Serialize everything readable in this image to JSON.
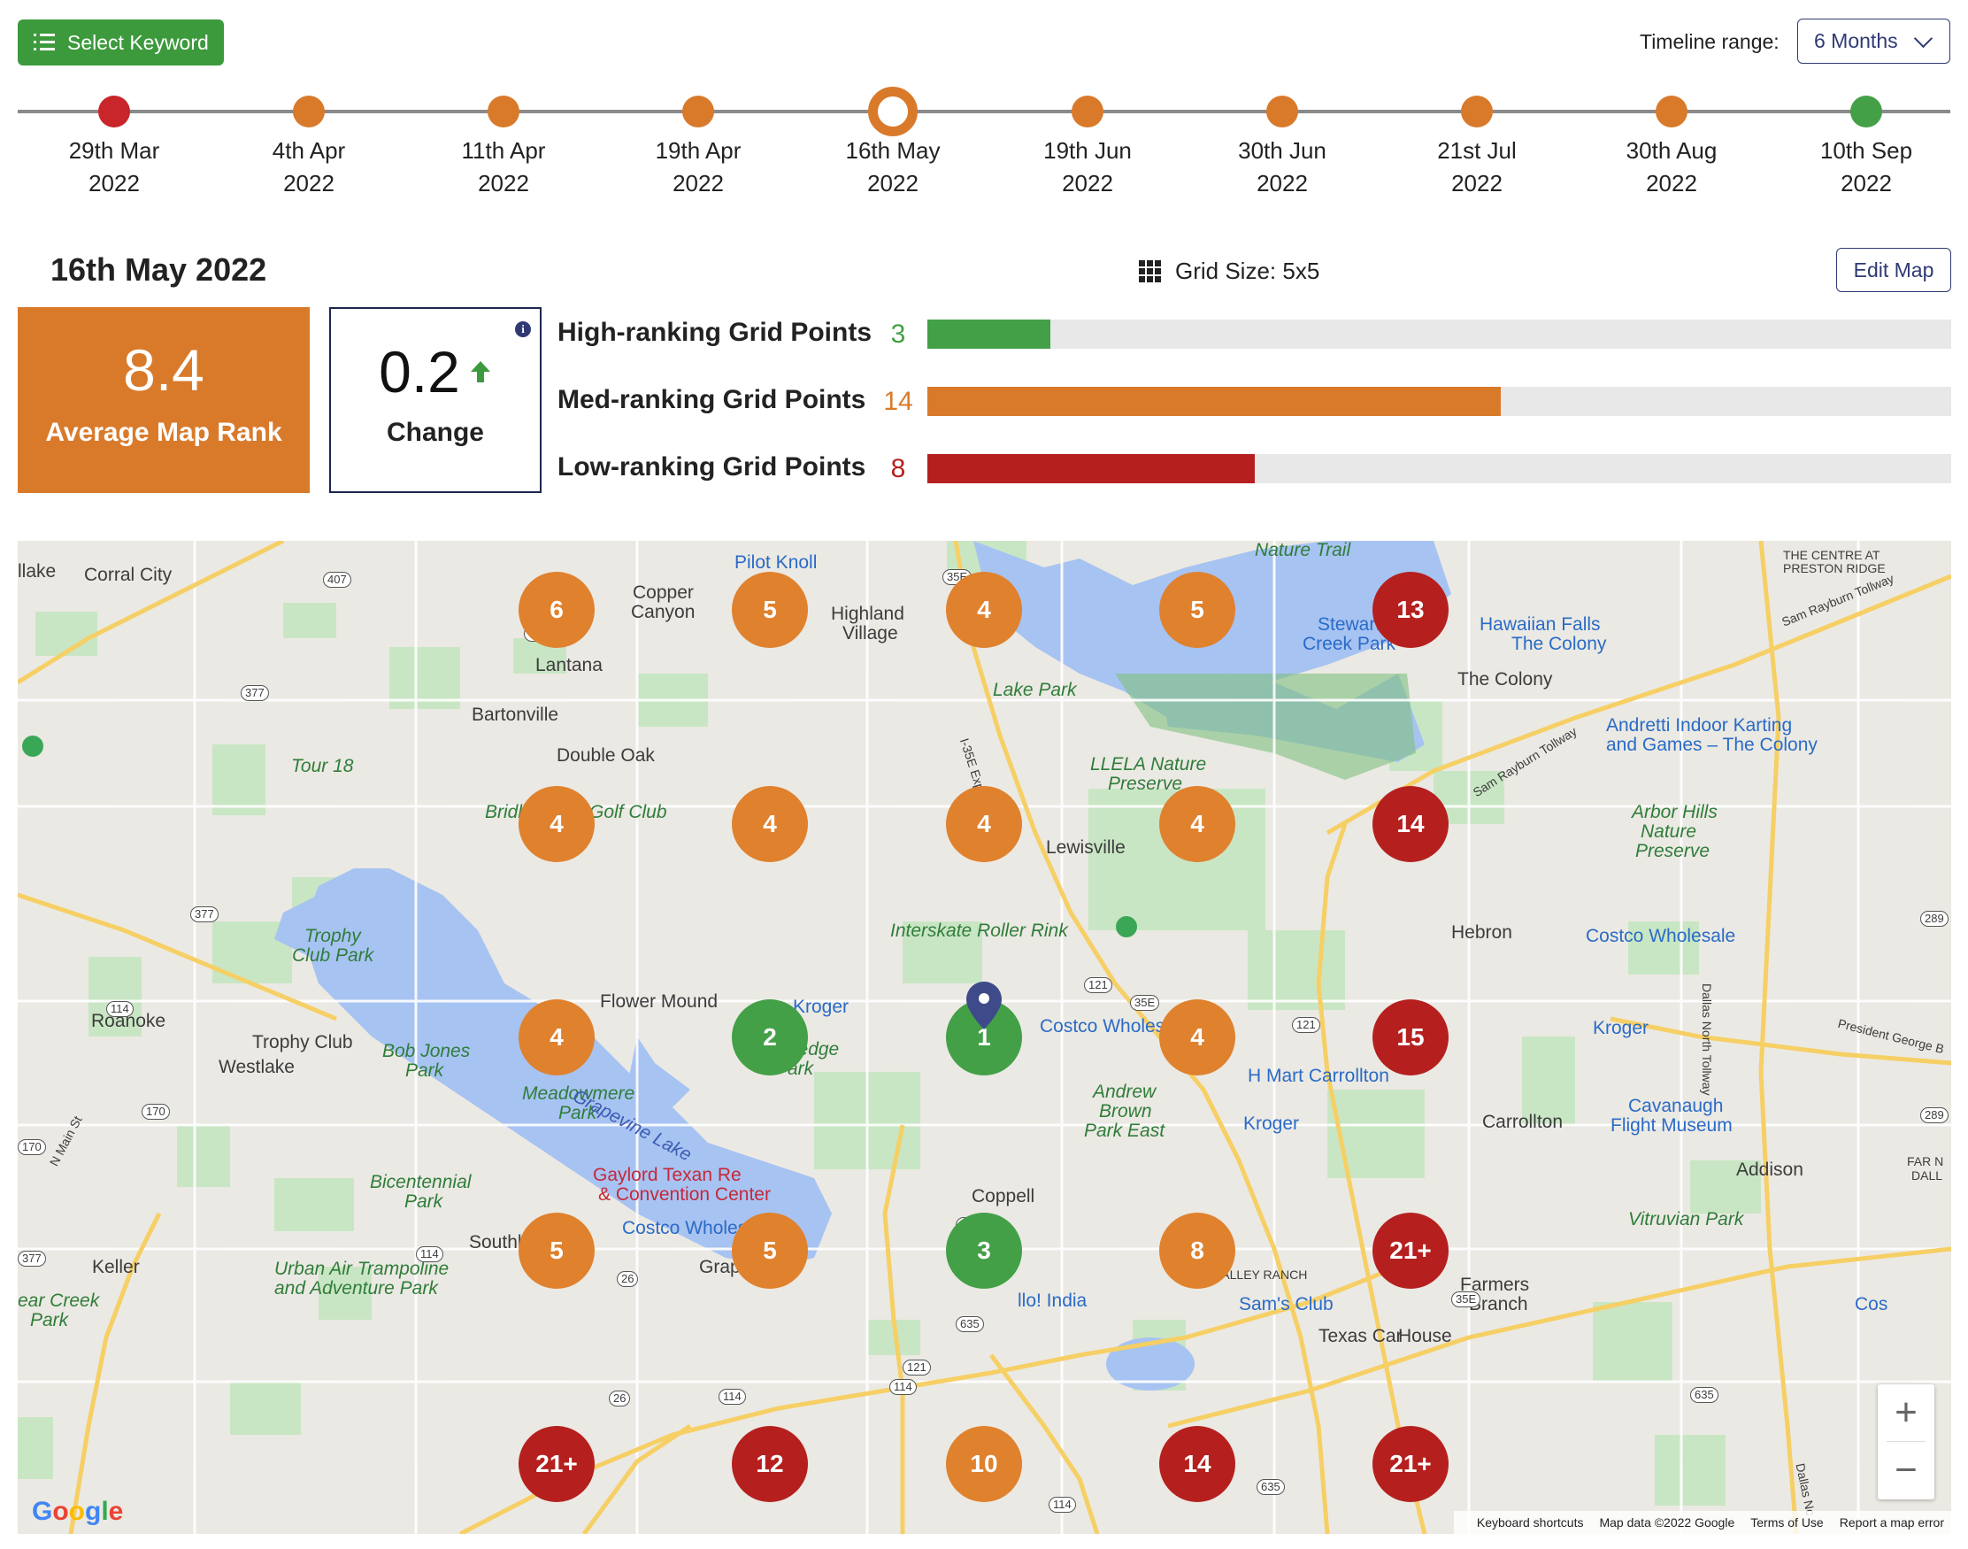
{
  "toolbar": {
    "select_keyword_label": "Select Keyword"
  },
  "timeline": {
    "range_label": "Timeline range:",
    "range_value": "6 Months",
    "items": [
      {
        "day": "29th Mar",
        "year": "2022",
        "color": "#c8262a"
      },
      {
        "day": "4th Apr",
        "year": "2022",
        "color": "#d97a2b"
      },
      {
        "day": "11th Apr",
        "year": "2022",
        "color": "#d97a2b"
      },
      {
        "day": "19th Apr",
        "year": "2022",
        "color": "#d97a2b"
      },
      {
        "day": "16th May",
        "year": "2022",
        "color": "#d97a2b",
        "selected": true
      },
      {
        "day": "19th Jun",
        "year": "2022",
        "color": "#d97a2b"
      },
      {
        "day": "30th Jun",
        "year": "2022",
        "color": "#d97a2b"
      },
      {
        "day": "21st Jul",
        "year": "2022",
        "color": "#d97a2b"
      },
      {
        "day": "30th Aug",
        "year": "2022",
        "color": "#d97a2b"
      },
      {
        "day": "10th Sep",
        "year": "2022",
        "color": "#43a047"
      }
    ]
  },
  "summary": {
    "selected_date": "16th May 2022",
    "grid_size": "Grid Size: 5x5",
    "edit_map_label": "Edit Map",
    "average_rank": "8.4",
    "average_rank_label": "Average Map Rank",
    "change": "0.2",
    "change_label": "Change",
    "info_glyph": "i",
    "rankings": [
      {
        "label": "High-ranking Grid Points",
        "count": "3",
        "color": "#43a047",
        "fraction": 0.12
      },
      {
        "label": "Med-ranking Grid Points",
        "count": "14",
        "color": "#d97a2b",
        "fraction": 0.56
      },
      {
        "label": "Low-ranking Grid Points",
        "count": "8",
        "color": "#b5201f",
        "fraction": 0.32
      }
    ]
  },
  "grid": {
    "rows": [
      [
        {
          "v": "6",
          "c": "med"
        },
        {
          "v": "5",
          "c": "med"
        },
        {
          "v": "4",
          "c": "med"
        },
        {
          "v": "5",
          "c": "med"
        },
        {
          "v": "13",
          "c": "low"
        }
      ],
      [
        {
          "v": "4",
          "c": "med"
        },
        {
          "v": "4",
          "c": "med"
        },
        {
          "v": "4",
          "c": "med"
        },
        {
          "v": "4",
          "c": "med"
        },
        {
          "v": "14",
          "c": "low"
        }
      ],
      [
        {
          "v": "4",
          "c": "med"
        },
        {
          "v": "2",
          "c": "high"
        },
        {
          "v": "1",
          "c": "high"
        },
        {
          "v": "4",
          "c": "med"
        },
        {
          "v": "15",
          "c": "low"
        }
      ],
      [
        {
          "v": "5",
          "c": "med"
        },
        {
          "v": "5",
          "c": "med"
        },
        {
          "v": "3",
          "c": "high"
        },
        {
          "v": "8",
          "c": "med"
        },
        {
          "v": "21+",
          "c": "low"
        }
      ],
      [
        {
          "v": "21+",
          "c": "low"
        },
        {
          "v": "12",
          "c": "low"
        },
        {
          "v": "10",
          "c": "med"
        },
        {
          "v": "14",
          "c": "low"
        },
        {
          "v": "21+",
          "c": "low"
        }
      ]
    ]
  },
  "map": {
    "labels": {
      "l1": "Corral City",
      "l2": "Copper",
      "l2b": "Canyon",
      "l3": "Pilot Knoll",
      "l4": "Highland",
      "l4b": "Village",
      "l5": "Nature Trail",
      "l6": "THE CENTRE AT",
      "l6b": "PRESTON RIDGE",
      "l7": "Lantana",
      "l8": "Stewart",
      "l8b": "Creek Park",
      "l9": "Hawaiian Falls",
      "l9b": "The Colony",
      "l10": "Lake Park",
      "l11": "The Colony",
      "l12": "Bartonville",
      "l13": "Double Oak",
      "l14": "Tour 18",
      "l15": "Andretti Indoor Karting",
      "l15b": "and Games – The Colony",
      "l16": "LLELA Nature",
      "l16b": "Preserve",
      "l17": "Golf Club",
      "l18": "Lewisville",
      "l19": "Arbor Hills",
      "l19b": "Nature",
      "l19c": "Preserve",
      "l20": "Interskate Roller Rink",
      "l21": "Hebron",
      "l22": "Costco Wholesale",
      "l23": "Trophy",
      "l23b": "Club Park",
      "l24": "Flower Mound",
      "l25": "Kroger",
      "l26": "Roanoke",
      "l27": "Trophy Club",
      "l28": "Bob Jones",
      "l28b": "Park",
      "l29": "Westlake",
      "l30": "Rockledge",
      "l30b": "Park",
      "l31": "Costco Wholesale",
      "l32": "Kroger",
      "l33": "Grapevine Lake",
      "l34": "Meadowmere",
      "l34b": "Park",
      "l35": "H Mart Carrollton",
      "l36": "Andrew",
      "l36b": "Brown",
      "l36c": "Park East",
      "l37": "Kroger",
      "l38": "Carrollton",
      "l39": "Cavanaugh",
      "l39b": "Flight Museum",
      "l40": "Gaylord Texan Re",
      "l40b": "& Convention Center",
      "l41": "Addison",
      "l42": "Bicentennial",
      "l42b": "Park",
      "l43": "Coppell",
      "l44": "Vitruvian Park",
      "l45": "Costco Wholesale",
      "l46": "Southlake",
      "l47": "Keller",
      "l48": "Urban Air Trampoline",
      "l48b": "and Adventure Park",
      "l49": "Grapevine",
      "l50": "VALLEY RANCH",
      "l51": "Farmers",
      "l51b": "Branch",
      "l52": "ear Creek",
      "l52b": "Park",
      "l53": "llo! India",
      "l54": "Sam's Club",
      "l55": "Texas Car",
      "l55b": "House",
      "l56": "Cos",
      "l57": "FAR N",
      "l57b": "DALL",
      "l58": "llake",
      "l59": "Bridl",
      "l60": "Dallas North Tollway",
      "l61": "Sam Rayburn Tollway",
      "l62": "President George B",
      "l63": "Sam Rayburn Tollway",
      "l64": "I-35E Express",
      "l65": "N Main St",
      "l66": "Dallas Nc"
    },
    "shields": [
      "407",
      "407",
      "377",
      "377",
      "35E",
      "35E",
      "121",
      "121",
      "114",
      "170",
      "170",
      "377",
      "114",
      "121",
      "121",
      "114",
      "114",
      "26",
      "26",
      "635",
      "35E",
      "635",
      "289",
      "289",
      "635",
      "114"
    ],
    "google_logo": "Google",
    "attribution": {
      "shortcuts": "Keyboard shortcuts",
      "data": "Map data ©2022 Google",
      "terms": "Terms of Use",
      "report": "Report a map error"
    },
    "zoom_in": "+",
    "zoom_out": "−"
  }
}
